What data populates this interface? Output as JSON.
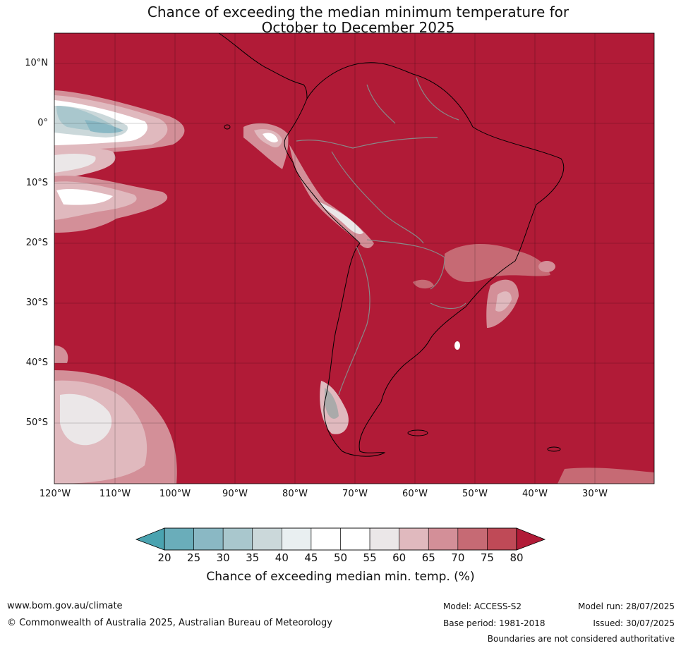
{
  "title": {
    "line1": "Chance of exceeding the median minimum temperature for",
    "line2": "October to December 2025"
  },
  "map": {
    "region": "South America and adjacent oceans",
    "lat_labels": [
      "10°N",
      "0°",
      "10°S",
      "20°S",
      "30°S",
      "40°S",
      "50°S"
    ],
    "lon_labels": [
      "120°W",
      "110°W",
      "100°W",
      "90°W",
      "80°W",
      "70°W",
      "60°W",
      "50°W",
      "40°W",
      "30°W"
    ],
    "background_color": "#b11b37",
    "coastline_color": "#000000",
    "border_color": "#888888"
  },
  "colorbar": {
    "ticks": [
      "20",
      "25",
      "30",
      "35",
      "40",
      "45",
      "50",
      "55",
      "60",
      "65",
      "70",
      "75",
      "80"
    ],
    "colors": [
      "#4aa3b0",
      "#6aadba",
      "#8ab8c4",
      "#a9c7cd",
      "#cbd8da",
      "#e9eff1",
      "#ffffff",
      "#ffffff",
      "#ebe7e8",
      "#e0b9be",
      "#d38f98",
      "#c66a74",
      "#bf4a57",
      "#b11b37"
    ],
    "label": "Chance of exceeding median min. temp. (%)"
  },
  "footer": {
    "url": "www.bom.gov.au/climate",
    "copyright": "© Commonwealth of Australia 2025, Australian Bureau of Meteorology",
    "model": "Model: ACCESS-S2",
    "base_period": "Base period: 1981-2018",
    "model_run": "Model run: 28/07/2025",
    "issued": "Issued: 30/07/2025",
    "disclaimer": "Boundaries are not considered authoritative"
  }
}
